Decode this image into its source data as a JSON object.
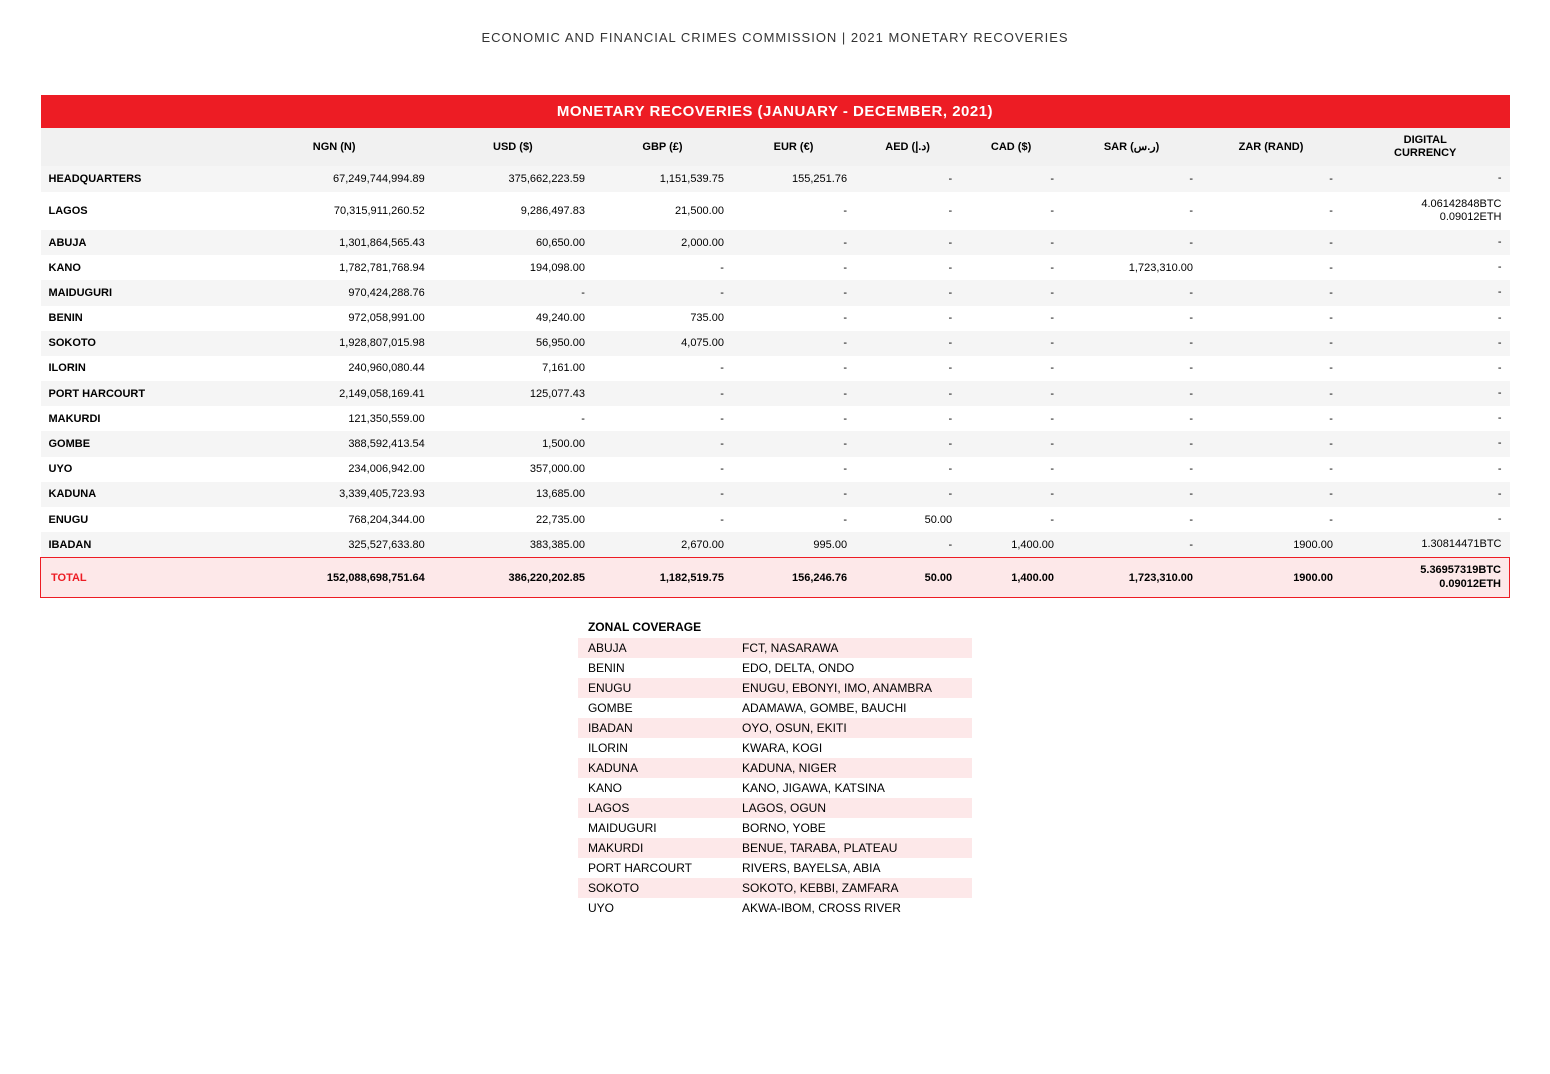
{
  "page_header": "ECONOMIC AND FINANCIAL CRIMES COMMISSION | 2021 MONETARY RECOVERIES",
  "main_table": {
    "title": "MONETARY RECOVERIES (JANUARY - DECEMBER, 2021)",
    "columns": [
      "",
      "NGN (N)",
      "USD ($)",
      "GBP (£)",
      "EUR (€)",
      "AED (د.إ)",
      "CAD ($)",
      "SAR (ر.س)",
      "ZAR (RAND)",
      "DIGITAL\nCURRENCY"
    ],
    "rows": [
      {
        "label": "HEADQUARTERS",
        "ngn": "67,249,744,994.89",
        "usd": "375,662,223.59",
        "gbp": "1,151,539.75",
        "eur": "155,251.76",
        "aed": "-",
        "cad": "-",
        "sar": "-",
        "zar": "-",
        "digital": "-"
      },
      {
        "label": "LAGOS",
        "ngn": "70,315,911,260.52",
        "usd": "9,286,497.83",
        "gbp": "21,500.00",
        "eur": "-",
        "aed": "-",
        "cad": "-",
        "sar": "-",
        "zar": "-",
        "digital": "4.06142848BTC\n0.09012ETH"
      },
      {
        "label": "ABUJA",
        "ngn": "1,301,864,565.43",
        "usd": "60,650.00",
        "gbp": "2,000.00",
        "eur": "-",
        "aed": "-",
        "cad": "-",
        "sar": "-",
        "zar": "-",
        "digital": "-"
      },
      {
        "label": "KANO",
        "ngn": "1,782,781,768.94",
        "usd": "194,098.00",
        "gbp": "-",
        "eur": "-",
        "aed": "-",
        "cad": "-",
        "sar": "1,723,310.00",
        "zar": "-",
        "digital": "-"
      },
      {
        "label": "MAIDUGURI",
        "ngn": "970,424,288.76",
        "usd": "-",
        "gbp": "-",
        "eur": "-",
        "aed": "-",
        "cad": "-",
        "sar": "-",
        "zar": "-",
        "digital": "-"
      },
      {
        "label": "BENIN",
        "ngn": "972,058,991.00",
        "usd": "49,240.00",
        "gbp": "735.00",
        "eur": "-",
        "aed": "-",
        "cad": "-",
        "sar": "-",
        "zar": "-",
        "digital": "-"
      },
      {
        "label": "SOKOTO",
        "ngn": "1,928,807,015.98",
        "usd": "56,950.00",
        "gbp": "4,075.00",
        "eur": "-",
        "aed": "-",
        "cad": "-",
        "sar": "-",
        "zar": "-",
        "digital": "-"
      },
      {
        "label": "ILORIN",
        "ngn": "240,960,080.44",
        "usd": "7,161.00",
        "gbp": "-",
        "eur": "-",
        "aed": "-",
        "cad": "-",
        "sar": "-",
        "zar": "-",
        "digital": "-"
      },
      {
        "label": "PORT HARCOURT",
        "ngn": "2,149,058,169.41",
        "usd": "125,077.43",
        "gbp": "-",
        "eur": "-",
        "aed": "-",
        "cad": "-",
        "sar": "-",
        "zar": "-",
        "digital": "-"
      },
      {
        "label": "MAKURDI",
        "ngn": "121,350,559.00",
        "usd": "-",
        "gbp": "-",
        "eur": "-",
        "aed": "-",
        "cad": "-",
        "sar": "-",
        "zar": "-",
        "digital": "-"
      },
      {
        "label": "GOMBE",
        "ngn": "388,592,413.54",
        "usd": "1,500.00",
        "gbp": "-",
        "eur": "-",
        "aed": "-",
        "cad": "-",
        "sar": "-",
        "zar": "-",
        "digital": "-"
      },
      {
        "label": "UYO",
        "ngn": "234,006,942.00",
        "usd": "357,000.00",
        "gbp": "-",
        "eur": "-",
        "aed": "-",
        "cad": "-",
        "sar": "-",
        "zar": "-",
        "digital": "-"
      },
      {
        "label": "KADUNA",
        "ngn": "3,339,405,723.93",
        "usd": "13,685.00",
        "gbp": "-",
        "eur": "-",
        "aed": "-",
        "cad": "-",
        "sar": "-",
        "zar": "-",
        "digital": "-"
      },
      {
        "label": "ENUGU",
        "ngn": "768,204,344.00",
        "usd": "22,735.00",
        "gbp": "-",
        "eur": "-",
        "aed": "50.00",
        "cad": "-",
        "sar": "-",
        "zar": "-",
        "digital": "-"
      },
      {
        "label": "IBADAN",
        "ngn": "325,527,633.80",
        "usd": "383,385.00",
        "gbp": "2,670.00",
        "eur": "995.00",
        "aed": "-",
        "cad": "1,400.00",
        "sar": "-",
        "zar": "1900.00",
        "digital": "1.30814471BTC"
      }
    ],
    "total": {
      "label": "TOTAL",
      "ngn": "152,088,698,751.64",
      "usd": "386,220,202.85",
      "gbp": "1,182,519.75",
      "eur": "156,246.76",
      "aed": "50.00",
      "cad": "1,400.00",
      "sar": "1,723,310.00",
      "zar": "1900.00",
      "digital": "5.36957319BTC\n0.09012ETH"
    }
  },
  "zonal": {
    "title": "ZONAL COVERAGE",
    "rows": [
      {
        "zone": "ABUJA",
        "cover": "FCT, NASARAWA"
      },
      {
        "zone": "BENIN",
        "cover": "EDO, DELTA, ONDO"
      },
      {
        "zone": "ENUGU",
        "cover": "ENUGU, EBONYI, IMO, ANAMBRA"
      },
      {
        "zone": "GOMBE",
        "cover": "ADAMAWA, GOMBE, BAUCHI"
      },
      {
        "zone": "IBADAN",
        "cover": "OYO, OSUN, EKITI"
      },
      {
        "zone": "ILORIN",
        "cover": "KWARA, KOGI"
      },
      {
        "zone": "KADUNA",
        "cover": "KADUNA, NIGER"
      },
      {
        "zone": "KANO",
        "cover": "KANO, JIGAWA, KATSINA"
      },
      {
        "zone": "LAGOS",
        "cover": "LAGOS, OGUN"
      },
      {
        "zone": "MAIDUGURI",
        "cover": "BORNO, YOBE"
      },
      {
        "zone": "MAKURDI",
        "cover": "BENUE, TARABA, PLATEAU"
      },
      {
        "zone": "PORT HARCOURT",
        "cover": "RIVERS, BAYELSA, ABIA"
      },
      {
        "zone": "SOKOTO",
        "cover": "SOKOTO, KEBBI, ZAMFARA"
      },
      {
        "zone": "UYO",
        "cover": "AKWA-IBOM, CROSS RIVER"
      }
    ]
  },
  "colors": {
    "brand_red": "#ed1c24",
    "row_alt": "#f5f5f5",
    "total_bg": "#fde8e9",
    "header_grey": "#f1f1f1"
  }
}
